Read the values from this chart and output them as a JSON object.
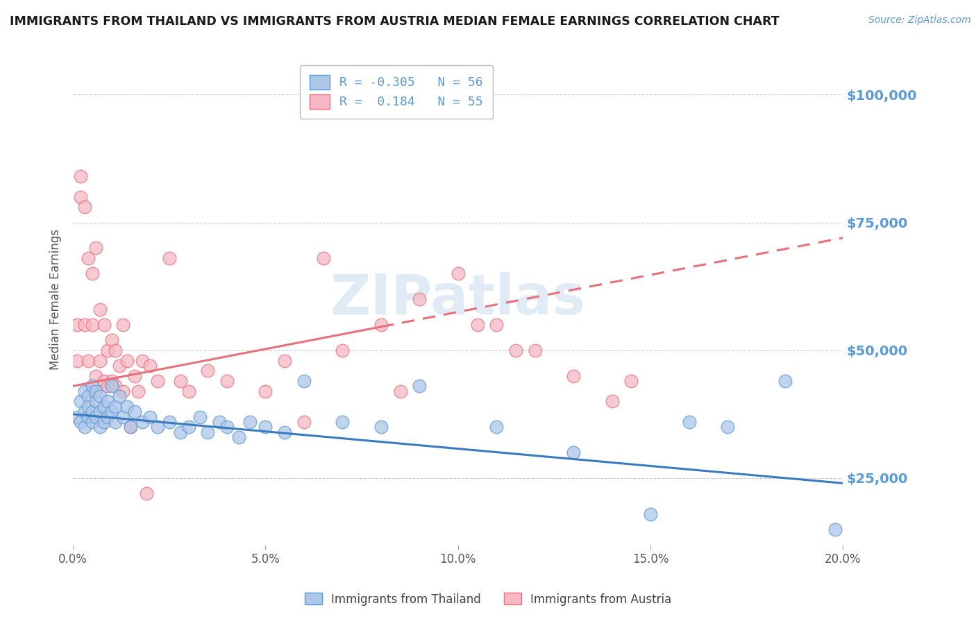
{
  "title": "IMMIGRANTS FROM THAILAND VS IMMIGRANTS FROM AUSTRIA MEDIAN FEMALE EARNINGS CORRELATION CHART",
  "source": "Source: ZipAtlas.com",
  "ylabel": "Median Female Earnings",
  "xlim": [
    0.0,
    0.2
  ],
  "ylim": [
    12000,
    108000
  ],
  "yticks": [
    25000,
    50000,
    75000,
    100000
  ],
  "ytick_labels": [
    "$25,000",
    "$50,000",
    "$75,000",
    "$100,000"
  ],
  "xticks": [
    0.0,
    0.05,
    0.1,
    0.15,
    0.2
  ],
  "xtick_labels": [
    "0.0%",
    "5.0%",
    "10.0%",
    "15.0%",
    "20.0%"
  ],
  "thailand_color": "#aec6e8",
  "austria_color": "#f5b8c4",
  "thailand_edge_color": "#5b9bd5",
  "austria_edge_color": "#e8707a",
  "thailand_line_color": "#3a7abf",
  "austria_line_color": "#e8707a",
  "r_thailand": -0.305,
  "n_thailand": 56,
  "r_austria": 0.184,
  "n_austria": 55,
  "legend_label_thailand": "Immigrants from Thailand",
  "legend_label_austria": "Immigrants from Austria",
  "watermark": "ZIPatlas",
  "background_color": "#ffffff",
  "grid_color": "#cccccc",
  "title_color": "#1a1a1a",
  "yaxis_label_color": "#5b9bd5",
  "thailand_scatter_x": [
    0.001,
    0.002,
    0.002,
    0.003,
    0.003,
    0.003,
    0.004,
    0.004,
    0.004,
    0.005,
    0.005,
    0.005,
    0.006,
    0.006,
    0.006,
    0.007,
    0.007,
    0.007,
    0.008,
    0.008,
    0.009,
    0.009,
    0.01,
    0.01,
    0.011,
    0.011,
    0.012,
    0.013,
    0.014,
    0.015,
    0.016,
    0.018,
    0.02,
    0.022,
    0.025,
    0.028,
    0.03,
    0.033,
    0.035,
    0.038,
    0.04,
    0.043,
    0.046,
    0.05,
    0.055,
    0.06,
    0.07,
    0.08,
    0.09,
    0.11,
    0.13,
    0.15,
    0.16,
    0.17,
    0.185,
    0.198
  ],
  "thailand_scatter_y": [
    37000,
    40000,
    36000,
    42000,
    38000,
    35000,
    41000,
    37000,
    39000,
    43000,
    36000,
    38000,
    40000,
    37000,
    42000,
    38000,
    35000,
    41000,
    39000,
    36000,
    40000,
    37000,
    43000,
    38000,
    39000,
    36000,
    41000,
    37000,
    39000,
    35000,
    38000,
    36000,
    37000,
    35000,
    36000,
    34000,
    35000,
    37000,
    34000,
    36000,
    35000,
    33000,
    36000,
    35000,
    34000,
    44000,
    36000,
    35000,
    43000,
    35000,
    30000,
    18000,
    36000,
    35000,
    44000,
    15000
  ],
  "austria_scatter_x": [
    0.001,
    0.001,
    0.002,
    0.002,
    0.003,
    0.003,
    0.004,
    0.004,
    0.005,
    0.005,
    0.005,
    0.006,
    0.006,
    0.007,
    0.007,
    0.008,
    0.008,
    0.009,
    0.009,
    0.01,
    0.01,
    0.011,
    0.011,
    0.012,
    0.013,
    0.013,
    0.014,
    0.015,
    0.016,
    0.017,
    0.018,
    0.019,
    0.02,
    0.022,
    0.025,
    0.028,
    0.03,
    0.035,
    0.04,
    0.05,
    0.055,
    0.06,
    0.065,
    0.07,
    0.08,
    0.085,
    0.09,
    0.1,
    0.105,
    0.11,
    0.115,
    0.12,
    0.13,
    0.14,
    0.145
  ],
  "austria_scatter_y": [
    55000,
    48000,
    84000,
    80000,
    78000,
    55000,
    68000,
    48000,
    65000,
    55000,
    42000,
    70000,
    45000,
    58000,
    48000,
    55000,
    44000,
    50000,
    43000,
    52000,
    44000,
    50000,
    43000,
    47000,
    55000,
    42000,
    48000,
    35000,
    45000,
    42000,
    48000,
    22000,
    47000,
    44000,
    68000,
    44000,
    42000,
    46000,
    44000,
    42000,
    48000,
    36000,
    68000,
    50000,
    55000,
    42000,
    60000,
    65000,
    55000,
    55000,
    50000,
    50000,
    45000,
    40000,
    44000
  ],
  "austria_line_solid_end": 0.08,
  "thailand_line_y0": 37500,
  "thailand_line_y1": 24000,
  "austria_line_y0": 43000,
  "austria_line_y1": 72000
}
